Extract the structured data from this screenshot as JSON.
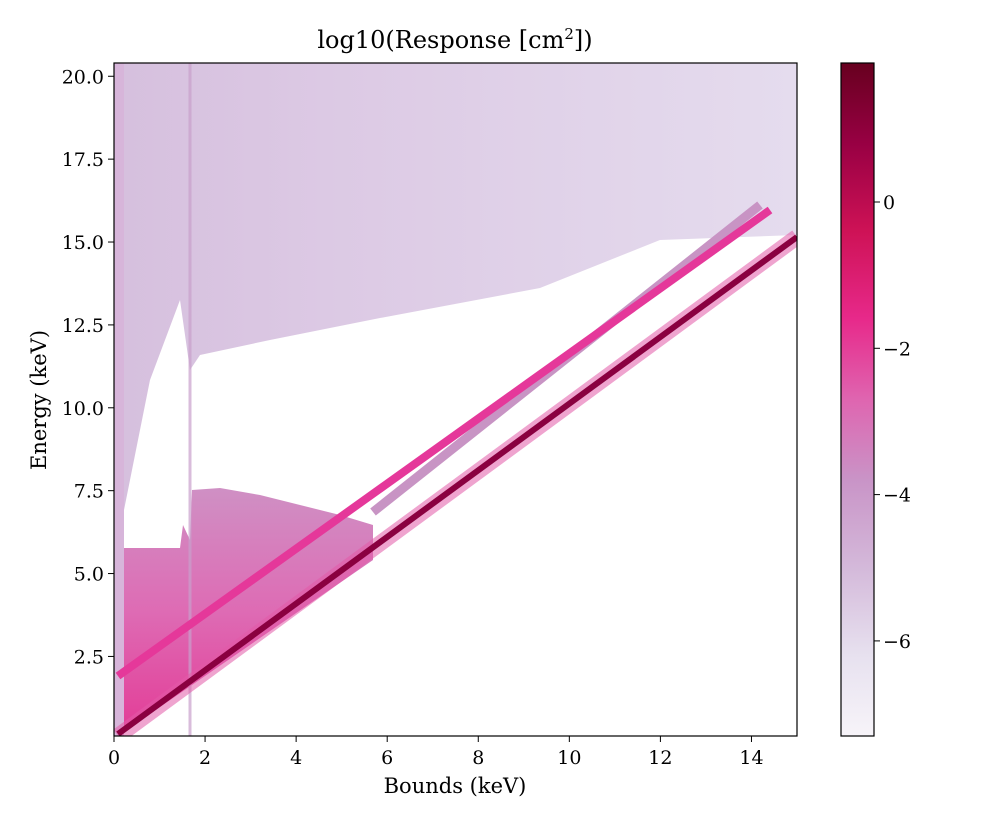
{
  "chart_data": {
    "type": "heatmap",
    "title": "log10(Response [cm",
    "title_sup": "2",
    "title_tail": "])",
    "xlabel": "Bounds (keV)",
    "ylabel": "Energy (keV)",
    "xlim": [
      0,
      15
    ],
    "ylim": [
      0.1,
      20.4
    ],
    "xticks": [
      0,
      2,
      4,
      6,
      8,
      10,
      12,
      14
    ],
    "xtick_labels": [
      "0",
      "2",
      "4",
      "6",
      "8",
      "10",
      "12",
      "14"
    ],
    "yticks": [
      2.5,
      5.0,
      7.5,
      10.0,
      12.5,
      15.0,
      17.5,
      20.0
    ],
    "ytick_labels": [
      "2.5",
      "5.0",
      "7.5",
      "10.0",
      "12.5",
      "15.0",
      "17.5",
      "20.0"
    ],
    "colorbar": {
      "range": [
        -7.3,
        1.9
      ],
      "ticks": [
        0,
        -2,
        -4,
        -6
      ],
      "tick_labels": [
        "0",
        "−2",
        "−4",
        "−6"
      ],
      "colormap": "PuRd",
      "stops": [
        "#f7f4f9",
        "#e7e1ef",
        "#d4b9da",
        "#c994c7",
        "#df65b0",
        "#e7298a",
        "#ce1256",
        "#980043",
        "#67001f"
      ]
    },
    "features": {
      "photopeak_diagonal": {
        "from": [
          0.1,
          0.1
        ],
        "to": [
          15,
          15
        ],
        "log10_response": 0.6
      },
      "escape_line_1": {
        "from": [
          0.1,
          1.85
        ],
        "to": [
          15,
          16.5
        ],
        "log10_response": -2.2
      },
      "escape_line_2": {
        "from": [
          5.7,
          7.2
        ],
        "to": [
          15,
          17
        ],
        "log10_response": -4.0
      },
      "upper_background_band": {
        "energy_min": 11.5,
        "energy_max": 20.4,
        "log10_response": -6.3
      },
      "lower_continuum_region": {
        "energy_max": 7.5,
        "bounds_max": 6.0,
        "log10_response": -3.8
      },
      "vertical_edge_bounds": 1.7
    }
  }
}
